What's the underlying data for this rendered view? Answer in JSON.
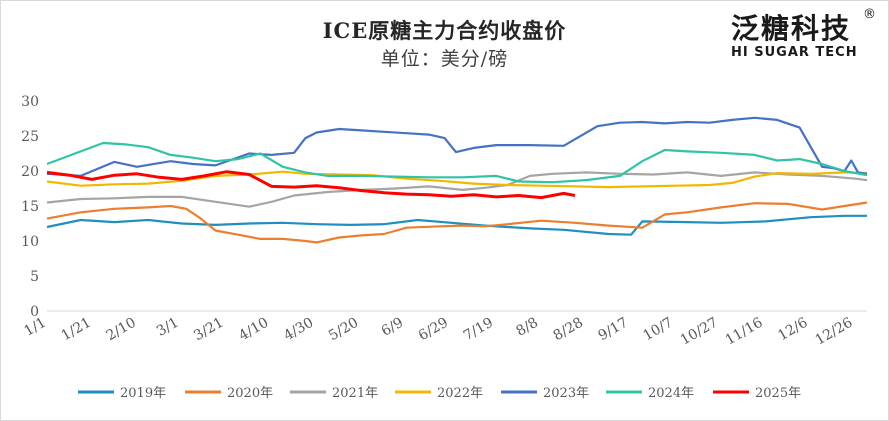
{
  "chart_data": {
    "type": "line",
    "title": "ICE原糖主力合约收盘价",
    "subtitle": "单位：美分/磅",
    "ylim": [
      0,
      30
    ],
    "y_ticks": [
      0,
      5,
      10,
      15,
      20,
      25,
      30
    ],
    "x_tick_labels": [
      "1/1",
      "1/21",
      "2/10",
      "3/1",
      "3/21",
      "4/10",
      "4/30",
      "5/20",
      "6/9",
      "6/29",
      "7/19",
      "8/8",
      "8/28",
      "9/17",
      "10/7",
      "10/27",
      "11/16",
      "12/6",
      "12/26"
    ],
    "x_tick_days": [
      0,
      20,
      40,
      59,
      79,
      99,
      119,
      139,
      159,
      179,
      199,
      219,
      239,
      259,
      279,
      299,
      319,
      339,
      359
    ],
    "grid": false,
    "legend_position": "bottom",
    "series": [
      {
        "name": "2019年",
        "color": "#1f8fbf",
        "points": [
          [
            0,
            12
          ],
          [
            15,
            13
          ],
          [
            30,
            12.7
          ],
          [
            45,
            13
          ],
          [
            60,
            12.5
          ],
          [
            75,
            12.3
          ],
          [
            90,
            12.5
          ],
          [
            105,
            12.6
          ],
          [
            120,
            12.4
          ],
          [
            135,
            12.3
          ],
          [
            150,
            12.4
          ],
          [
            165,
            13
          ],
          [
            180,
            12.6
          ],
          [
            195,
            12.2
          ],
          [
            205,
            12
          ],
          [
            215,
            11.8
          ],
          [
            230,
            11.6
          ],
          [
            250,
            11
          ],
          [
            260,
            10.9
          ],
          [
            265,
            12.8
          ],
          [
            285,
            12.7
          ],
          [
            300,
            12.6
          ],
          [
            320,
            12.8
          ],
          [
            340,
            13.4
          ],
          [
            355,
            13.6
          ],
          [
            365,
            13.6
          ]
        ]
      },
      {
        "name": "2020年",
        "color": "#ed7d31",
        "points": [
          [
            0,
            13.2
          ],
          [
            15,
            14.1
          ],
          [
            30,
            14.6
          ],
          [
            45,
            14.8
          ],
          [
            55,
            15
          ],
          [
            62,
            14.6
          ],
          [
            68,
            13.3
          ],
          [
            75,
            11.5
          ],
          [
            85,
            10.9
          ],
          [
            95,
            10.3
          ],
          [
            105,
            10.3
          ],
          [
            115,
            10
          ],
          [
            120,
            9.8
          ],
          [
            130,
            10.5
          ],
          [
            140,
            10.8
          ],
          [
            150,
            11
          ],
          [
            160,
            11.9
          ],
          [
            175,
            12.1
          ],
          [
            185,
            12.2
          ],
          [
            195,
            12.1
          ],
          [
            205,
            12.4
          ],
          [
            220,
            12.9
          ],
          [
            235,
            12.6
          ],
          [
            250,
            12.2
          ],
          [
            265,
            11.9
          ],
          [
            275,
            13.8
          ],
          [
            285,
            14.1
          ],
          [
            300,
            14.8
          ],
          [
            315,
            15.4
          ],
          [
            330,
            15.3
          ],
          [
            345,
            14.5
          ],
          [
            355,
            15
          ],
          [
            365,
            15.5
          ]
        ]
      },
      {
        "name": "2021年",
        "color": "#a5a5a5",
        "points": [
          [
            0,
            15.5
          ],
          [
            15,
            16
          ],
          [
            30,
            16.1
          ],
          [
            45,
            16.3
          ],
          [
            60,
            16.3
          ],
          [
            75,
            15.6
          ],
          [
            90,
            14.9
          ],
          [
            100,
            15.6
          ],
          [
            110,
            16.5
          ],
          [
            125,
            17
          ],
          [
            140,
            17.3
          ],
          [
            155,
            17.5
          ],
          [
            170,
            17.8
          ],
          [
            185,
            17.3
          ],
          [
            195,
            17.6
          ],
          [
            205,
            18
          ],
          [
            215,
            19.3
          ],
          [
            225,
            19.6
          ],
          [
            240,
            19.8
          ],
          [
            255,
            19.6
          ],
          [
            270,
            19.5
          ],
          [
            285,
            19.8
          ],
          [
            300,
            19.3
          ],
          [
            315,
            19.8
          ],
          [
            330,
            19.5
          ],
          [
            345,
            19.3
          ],
          [
            360,
            18.9
          ],
          [
            365,
            18.7
          ]
        ]
      },
      {
        "name": "2022年",
        "color": "#f2b800",
        "points": [
          [
            0,
            18.5
          ],
          [
            15,
            17.9
          ],
          [
            30,
            18.1
          ],
          [
            45,
            18.2
          ],
          [
            60,
            18.6
          ],
          [
            75,
            19.3
          ],
          [
            90,
            19.5
          ],
          [
            105,
            19.9
          ],
          [
            115,
            19.6
          ],
          [
            130,
            19.5
          ],
          [
            145,
            19.4
          ],
          [
            160,
            18.9
          ],
          [
            175,
            18.6
          ],
          [
            190,
            18.2
          ],
          [
            205,
            18
          ],
          [
            220,
            17.9
          ],
          [
            235,
            17.8
          ],
          [
            250,
            17.7
          ],
          [
            265,
            17.8
          ],
          [
            280,
            17.9
          ],
          [
            295,
            18
          ],
          [
            305,
            18.3
          ],
          [
            315,
            19.2
          ],
          [
            325,
            19.7
          ],
          [
            340,
            19.6
          ],
          [
            355,
            19.8
          ],
          [
            365,
            19.7
          ]
        ]
      },
      {
        "name": "2023年",
        "color": "#4472c4",
        "points": [
          [
            0,
            19.6
          ],
          [
            15,
            19.3
          ],
          [
            30,
            21.3
          ],
          [
            40,
            20.6
          ],
          [
            55,
            21.4
          ],
          [
            65,
            21
          ],
          [
            75,
            20.8
          ],
          [
            90,
            22.5
          ],
          [
            100,
            22.3
          ],
          [
            110,
            22.6
          ],
          [
            115,
            24.7
          ],
          [
            120,
            25.5
          ],
          [
            130,
            26
          ],
          [
            140,
            25.8
          ],
          [
            150,
            25.6
          ],
          [
            160,
            25.4
          ],
          [
            170,
            25.2
          ],
          [
            177,
            24.7
          ],
          [
            182,
            22.7
          ],
          [
            190,
            23.3
          ],
          [
            200,
            23.7
          ],
          [
            215,
            23.7
          ],
          [
            230,
            23.6
          ],
          [
            245,
            26.4
          ],
          [
            255,
            26.9
          ],
          [
            265,
            27
          ],
          [
            275,
            26.8
          ],
          [
            285,
            27
          ],
          [
            295,
            26.9
          ],
          [
            305,
            27.3
          ],
          [
            315,
            27.6
          ],
          [
            325,
            27.3
          ],
          [
            335,
            26.2
          ],
          [
            345,
            20.6
          ],
          [
            350,
            20.4
          ],
          [
            355,
            20
          ],
          [
            358,
            21.5
          ],
          [
            361,
            19.8
          ],
          [
            365,
            19.6
          ]
        ]
      },
      {
        "name": "2024年",
        "color": "#2fc4a5",
        "points": [
          [
            0,
            21
          ],
          [
            15,
            22.8
          ],
          [
            25,
            24
          ],
          [
            35,
            23.8
          ],
          [
            45,
            23.4
          ],
          [
            55,
            22.3
          ],
          [
            65,
            21.9
          ],
          [
            75,
            21.4
          ],
          [
            85,
            21.7
          ],
          [
            95,
            22.5
          ],
          [
            105,
            20.6
          ],
          [
            115,
            19.8
          ],
          [
            125,
            19.3
          ],
          [
            140,
            19.3
          ],
          [
            155,
            19.2
          ],
          [
            170,
            19.1
          ],
          [
            185,
            19.1
          ],
          [
            200,
            19.3
          ],
          [
            210,
            18.5
          ],
          [
            225,
            18.4
          ],
          [
            240,
            18.7
          ],
          [
            255,
            19.3
          ],
          [
            265,
            21.4
          ],
          [
            275,
            23
          ],
          [
            285,
            22.8
          ],
          [
            300,
            22.6
          ],
          [
            315,
            22.3
          ],
          [
            325,
            21.5
          ],
          [
            335,
            21.7
          ],
          [
            345,
            21
          ],
          [
            355,
            20
          ],
          [
            365,
            19.4
          ]
        ]
      },
      {
        "name": "2025年",
        "color": "#ff0000",
        "points": [
          [
            0,
            19.8
          ],
          [
            10,
            19.4
          ],
          [
            20,
            18.8
          ],
          [
            30,
            19.4
          ],
          [
            40,
            19.6
          ],
          [
            50,
            19.1
          ],
          [
            60,
            18.8
          ],
          [
            70,
            19.3
          ],
          [
            80,
            19.9
          ],
          [
            90,
            19.5
          ],
          [
            100,
            17.8
          ],
          [
            110,
            17.7
          ],
          [
            120,
            17.9
          ],
          [
            130,
            17.6
          ],
          [
            140,
            17.2
          ],
          [
            150,
            16.9
          ],
          [
            160,
            16.7
          ],
          [
            170,
            16.6
          ],
          [
            180,
            16.4
          ],
          [
            190,
            16.6
          ],
          [
            200,
            16.3
          ],
          [
            210,
            16.5
          ],
          [
            220,
            16.2
          ],
          [
            230,
            16.8
          ],
          [
            235,
            16.5
          ]
        ]
      }
    ]
  }
}
